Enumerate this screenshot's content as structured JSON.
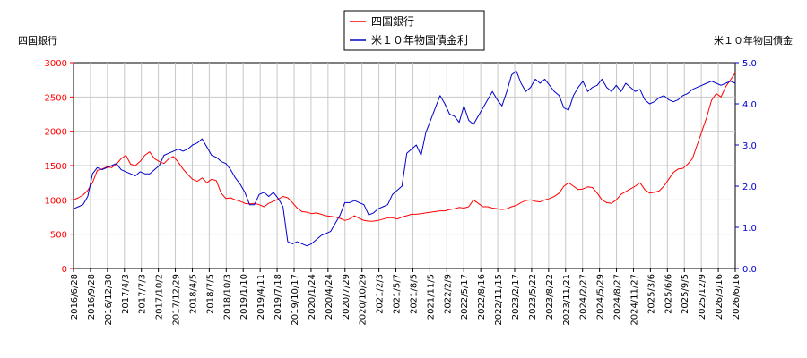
{
  "chart_data": {
    "type": "line",
    "left_axis": {
      "title": "四国銀行",
      "range": [
        0,
        3000
      ],
      "ticks": [
        0,
        500,
        1000,
        1500,
        2000,
        2500,
        3000
      ],
      "tick_labels": [
        "0",
        "500",
        "1000",
        "1500",
        "2000",
        "2500",
        "3000"
      ],
      "color": "#ff0000"
    },
    "right_axis": {
      "title": "米１０年物国債金",
      "range": [
        0,
        5
      ],
      "ticks": [
        0,
        1,
        2,
        3,
        4,
        5
      ],
      "tick_labels": [
        "0.0",
        "1.0",
        "2.0",
        "3.0",
        "4.0",
        "5.0"
      ],
      "color": "#0000cc"
    },
    "x_tick_labels": [
      "2016/6/28",
      "2016/9/28",
      "2016/12/30",
      "2017/4/3",
      "2017/7/3",
      "2017/10/2",
      "2017/12/29",
      "2018/4/5",
      "2018/7/5",
      "2018/10/3",
      "2019/1/10",
      "2019/4/11",
      "2019/7/18",
      "2019/10/17",
      "2020/1/24",
      "2020/4/24",
      "2020/7/29",
      "2020/10/29",
      "2021/2/3",
      "2021/5/7",
      "2021/8/5",
      "2021/11/5",
      "2022/2/9",
      "2022/5/17",
      "2022/8/16",
      "2022/11/15",
      "2023/2/17",
      "2023/5/22",
      "2023/8/22",
      "2023/11/21",
      "2024/2/27",
      "2024/5/29",
      "2024/8/27",
      "2024/11/27",
      "2025/3/6",
      "2025/6/6",
      "2025/9/5",
      "2025/12/9",
      "2026/3/16",
      "2026/6/16"
    ],
    "grid": true,
    "legend": {
      "position": "top-center",
      "entries": [
        {
          "label": "四国銀行",
          "color": "#ff0000"
        },
        {
          "label": "米１０年物国債金利",
          "color": "#0000cc"
        }
      ]
    },
    "series": [
      {
        "name": "四国銀行",
        "axis": "left",
        "color": "#ff0000",
        "values": [
          1000,
          1030,
          1070,
          1140,
          1250,
          1430,
          1450,
          1480,
          1470,
          1520,
          1600,
          1650,
          1520,
          1500,
          1560,
          1650,
          1700,
          1600,
          1560,
          1530,
          1600,
          1630,
          1550,
          1450,
          1370,
          1300,
          1270,
          1320,
          1250,
          1300,
          1280,
          1100,
          1020,
          1030,
          1000,
          980,
          950,
          940,
          950,
          930,
          900,
          950,
          980,
          1010,
          1050,
          1030,
          960,
          880,
          830,
          820,
          800,
          810,
          790,
          770,
          760,
          750,
          730,
          700,
          720,
          770,
          730,
          700,
          690,
          690,
          700,
          720,
          740,
          740,
          720,
          750,
          770,
          790,
          790,
          800,
          810,
          820,
          830,
          840,
          840,
          860,
          870,
          890,
          880,
          900,
          1000,
          950,
          900,
          900,
          880,
          870,
          860,
          870,
          900,
          920,
          960,
          990,
          1000,
          980,
          970,
          1000,
          1020,
          1050,
          1100,
          1200,
          1250,
          1200,
          1150,
          1160,
          1190,
          1180,
          1100,
          1000,
          960,
          950,
          1000,
          1080,
          1120,
          1160,
          1200,
          1250,
          1150,
          1100,
          1110,
          1130,
          1200,
          1300,
          1400,
          1450,
          1460,
          1520,
          1600,
          1800,
          2000,
          2200,
          2450,
          2550,
          2500,
          2650,
          2750,
          2850
        ]
      },
      {
        "name": "米１０年物国債金利",
        "axis": "right",
        "color": "#0000cc",
        "values": [
          1.45,
          1.5,
          1.55,
          1.75,
          2.3,
          2.45,
          2.4,
          2.45,
          2.5,
          2.55,
          2.4,
          2.35,
          2.3,
          2.25,
          2.35,
          2.3,
          2.3,
          2.4,
          2.5,
          2.75,
          2.8,
          2.85,
          2.9,
          2.85,
          2.9,
          3.0,
          3.05,
          3.15,
          2.95,
          2.75,
          2.7,
          2.6,
          2.55,
          2.4,
          2.2,
          2.05,
          1.85,
          1.55,
          1.55,
          1.8,
          1.85,
          1.75,
          1.85,
          1.7,
          1.5,
          0.65,
          0.6,
          0.65,
          0.6,
          0.55,
          0.6,
          0.7,
          0.8,
          0.85,
          0.9,
          1.1,
          1.3,
          1.6,
          1.6,
          1.65,
          1.6,
          1.55,
          1.3,
          1.35,
          1.45,
          1.5,
          1.55,
          1.8,
          1.9,
          2.0,
          2.8,
          2.9,
          3.0,
          2.75,
          3.3,
          3.6,
          3.9,
          4.2,
          4.0,
          3.75,
          3.7,
          3.55,
          3.95,
          3.6,
          3.5,
          3.7,
          3.9,
          4.1,
          4.3,
          4.1,
          3.95,
          4.3,
          4.7,
          4.8,
          4.5,
          4.3,
          4.4,
          4.6,
          4.5,
          4.6,
          4.45,
          4.3,
          4.2,
          3.9,
          3.85,
          4.2,
          4.4,
          4.55,
          4.3,
          4.4,
          4.45,
          4.6,
          4.4,
          4.3,
          4.45,
          4.3,
          4.5,
          4.4,
          4.3,
          4.35,
          4.1,
          4.0,
          4.05,
          4.15,
          4.2,
          4.1,
          4.05,
          4.1,
          4.2,
          4.25,
          4.35,
          4.4,
          4.45,
          4.5,
          4.55,
          4.5,
          4.45,
          4.5,
          4.55,
          4.5
        ]
      }
    ]
  }
}
